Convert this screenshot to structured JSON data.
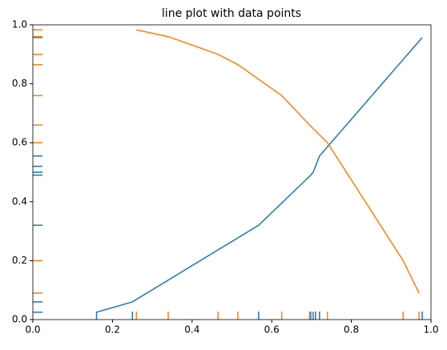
{
  "chart_data": {
    "type": "line",
    "title": "line plot with data points",
    "series": [
      {
        "color": "#1f77b4",
        "x": [
          0.16,
          0.25,
          0.567,
          0.698,
          0.704,
          0.71,
          0.72,
          0.978
        ],
        "values": [
          0.025,
          0.06,
          0.32,
          0.49,
          0.5,
          0.52,
          0.555,
          0.957
        ]
      },
      {
        "color": "#ff7f0e",
        "x": [
          0.26,
          0.34,
          0.465,
          0.515,
          0.625,
          0.695,
          0.74,
          0.93,
          0.97
        ],
        "values": [
          0.983,
          0.96,
          0.9,
          0.865,
          0.76,
          0.66,
          0.6,
          0.2,
          0.09
        ]
      }
    ],
    "xlim": [
      0,
      1
    ],
    "ylim": [
      0,
      1
    ],
    "xticks": [
      {
        "value": 0,
        "label": "0.0"
      },
      {
        "value": 0.2,
        "label": "0.2"
      },
      {
        "value": 0.4,
        "label": "0.4"
      },
      {
        "value": 0.6,
        "label": "0.6"
      },
      {
        "value": 0.8,
        "label": "0.8"
      },
      {
        "value": 1,
        "label": "1.0"
      }
    ],
    "yticks": [
      {
        "value": 0,
        "label": "0.0"
      },
      {
        "value": 0.2,
        "label": "0.2"
      },
      {
        "value": 0.4,
        "label": "0.4"
      },
      {
        "value": 0.6,
        "label": "0.6"
      },
      {
        "value": 0.8,
        "label": "0.8"
      },
      {
        "value": 1,
        "label": "1.0"
      }
    ],
    "grid": false
  }
}
